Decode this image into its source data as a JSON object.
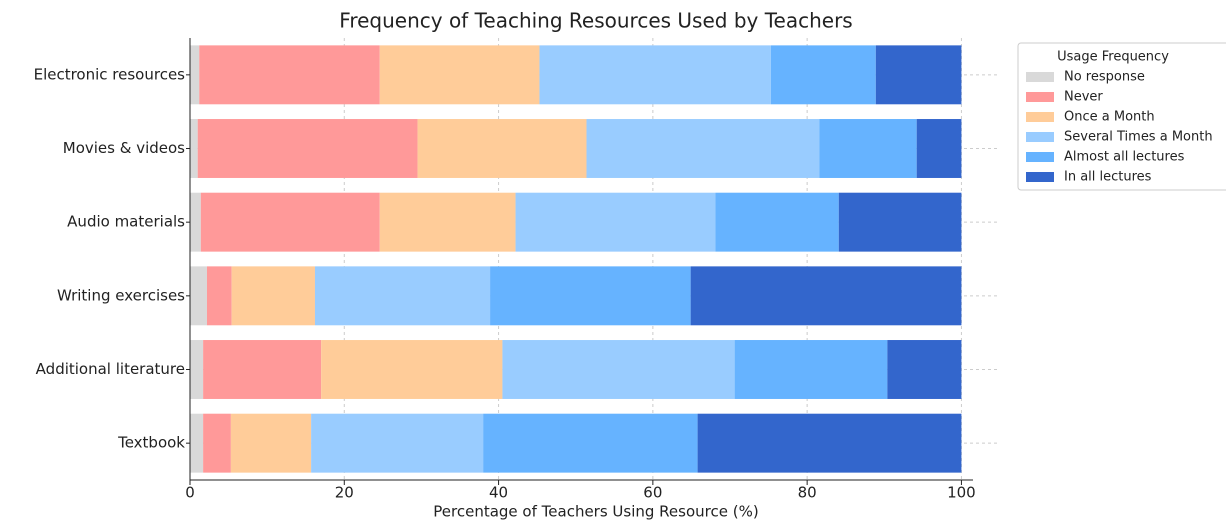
{
  "chart_data": {
    "type": "stacked-barh",
    "title": "Frequency of Teaching Resources Used by Teachers",
    "xlabel": "Percentage of Teachers Using Resource (%)",
    "legend_title": "Usage Frequency",
    "legend": "upper right outside",
    "grid": true,
    "categories": [
      "Electronic resources",
      "Movies & videos",
      "Audio materials",
      "Writing exercises",
      "Additional literature",
      "Textbook"
    ],
    "series": [
      {
        "name": "No response",
        "color": "#d9d9d9",
        "values": [
          1.2,
          1.0,
          1.4,
          2.2,
          1.7,
          1.7
        ]
      },
      {
        "name": "Never",
        "color": "#ff9999",
        "values": [
          23.4,
          28.5,
          23.2,
          3.2,
          15.3,
          3.6
        ]
      },
      {
        "name": "Once a Month",
        "color": "#ffcc99",
        "values": [
          20.7,
          21.9,
          17.6,
          10.8,
          23.5,
          10.4
        ]
      },
      {
        "name": "Several Times a Month",
        "color": "#99ccff",
        "values": [
          30.0,
          30.2,
          25.9,
          22.7,
          30.1,
          22.3
        ]
      },
      {
        "name": "Almost all lectures",
        "color": "#66b3ff",
        "values": [
          13.6,
          12.6,
          16.0,
          26.0,
          19.8,
          27.8
        ]
      },
      {
        "name": "In all lectures",
        "color": "#3366cc",
        "values": [
          11.1,
          5.8,
          15.9,
          35.1,
          9.6,
          34.2
        ]
      }
    ],
    "xlim": [
      0,
      105
    ],
    "xticks": [
      0,
      20,
      40,
      60,
      80,
      100
    ]
  }
}
